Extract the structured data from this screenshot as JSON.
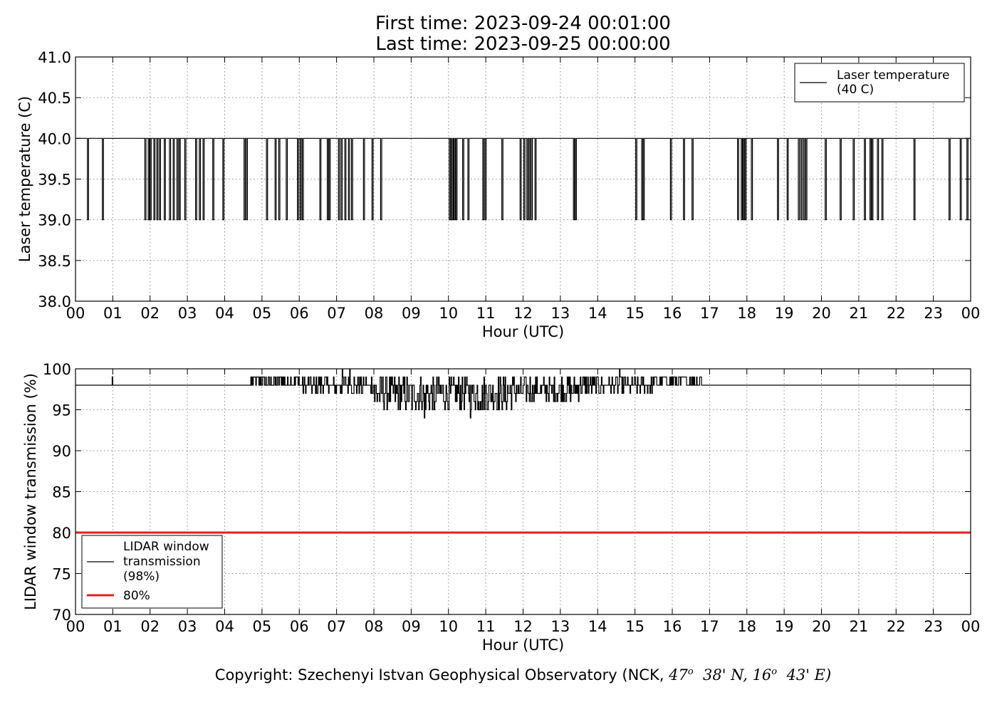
{
  "header": {
    "first_time": "First time: 2023-09-24 00:01:00",
    "last_time": "Last time: 2023-09-25 00:00:00"
  },
  "footer": {
    "copyright_prefix": "Copyright: Szechenyi Istvan Geophysical Observatory (NCK, ",
    "lat_deg": "47",
    "lat_min": "38' N, ",
    "lon_deg": "16",
    "lon_min": "43' E)",
    "degree_mark": "o"
  },
  "chart_data": [
    {
      "type": "line",
      "title": "",
      "xlabel": "Hour (UTC)",
      "ylabel": "Laser temperature (C)",
      "xlim": [
        0,
        24
      ],
      "ylim": [
        38.0,
        41.0
      ],
      "yticks": [
        "38.0",
        "38.5",
        "39.0",
        "39.5",
        "40.0",
        "40.5",
        "41.0"
      ],
      "xticks": [
        "00",
        "01",
        "02",
        "03",
        "04",
        "05",
        "06",
        "07",
        "08",
        "09",
        "10",
        "11",
        "12",
        "13",
        "14",
        "15",
        "16",
        "17",
        "18",
        "19",
        "20",
        "21",
        "22",
        "23",
        "00"
      ],
      "grid": true,
      "legend": "top-right",
      "series": [
        {
          "name": "Laser temperature\n(40 C)",
          "color": "#000000",
          "baseline": 40.0,
          "dip_value": 39.0,
          "dip_hours": [
            0.32,
            0.72,
            1.86,
            1.95,
            2.0,
            2.1,
            2.18,
            2.25,
            2.38,
            2.52,
            2.62,
            2.72,
            2.78,
            2.93,
            3.22,
            3.32,
            3.42,
            3.68,
            3.95,
            4.52,
            4.58,
            5.12,
            5.35,
            5.45,
            5.65,
            5.95,
            6.02,
            6.08,
            6.55,
            6.75,
            6.8,
            7.05,
            7.12,
            7.22,
            7.32,
            7.4,
            7.72,
            7.95,
            8.18,
            10.02,
            10.06,
            10.1,
            10.15,
            10.2,
            10.38,
            10.52,
            10.92,
            10.98,
            11.43,
            11.92,
            12.02,
            12.1,
            12.16,
            12.22,
            12.32,
            13.35,
            13.4,
            15.02,
            15.18,
            15.22,
            15.95,
            16.3,
            16.53,
            17.75,
            17.85,
            17.9,
            17.95,
            18.12,
            18.82,
            19.08,
            19.38,
            19.45,
            19.52,
            19.58,
            20.1,
            20.5,
            20.85,
            21.15,
            21.3,
            21.35,
            21.5,
            21.62,
            22.48,
            23.42,
            23.72,
            23.9
          ],
          "dip_width_hours": 0.03
        }
      ]
    },
    {
      "type": "line",
      "title": "",
      "xlabel": "Hour (UTC)",
      "ylabel": "LIDAR window transmission (%)",
      "xlim": [
        0,
        24
      ],
      "ylim": [
        70,
        100
      ],
      "yticks": [
        "70",
        "75",
        "80",
        "85",
        "90",
        "95",
        "100"
      ],
      "xticks": [
        "00",
        "01",
        "02",
        "03",
        "04",
        "05",
        "06",
        "07",
        "08",
        "09",
        "10",
        "11",
        "12",
        "13",
        "14",
        "15",
        "16",
        "17",
        "18",
        "19",
        "20",
        "21",
        "22",
        "23",
        "00"
      ],
      "grid": true,
      "legend": "lower-left",
      "series": [
        {
          "name": "LIDAR window\ntransmission\n(98%)",
          "color": "#000000",
          "baseline": 98,
          "noisy_segments": [
            {
              "start": 4.72,
              "end": 6.0,
              "min": 98,
              "max": 99
            },
            {
              "start": 6.0,
              "end": 8.0,
              "min": 97,
              "max": 99
            },
            {
              "start": 8.0,
              "end": 11.7,
              "min": 95,
              "max": 99
            },
            {
              "start": 11.7,
              "end": 13.5,
              "min": 96,
              "max": 99
            },
            {
              "start": 13.5,
              "end": 15.5,
              "min": 97,
              "max": 99
            },
            {
              "start": 15.5,
              "end": 16.8,
              "min": 98,
              "max": 99
            }
          ],
          "spikes": [
            {
              "x": 0.98,
              "y": 99
            },
            {
              "x": 4.7,
              "y": 99
            },
            {
              "x": 7.15,
              "y": 100
            },
            {
              "x": 7.35,
              "y": 100
            },
            {
              "x": 9.02,
              "y": 95
            },
            {
              "x": 9.35,
              "y": 94
            },
            {
              "x": 9.62,
              "y": 95
            },
            {
              "x": 10.0,
              "y": 95
            },
            {
              "x": 10.58,
              "y": 94
            },
            {
              "x": 10.82,
              "y": 95
            },
            {
              "x": 11.05,
              "y": 95
            },
            {
              "x": 11.55,
              "y": 95
            },
            {
              "x": 14.58,
              "y": 100
            },
            {
              "x": 15.4,
              "y": 97
            }
          ]
        },
        {
          "name": "80%",
          "color": "#e0201b",
          "constant": 80
        }
      ]
    }
  ]
}
